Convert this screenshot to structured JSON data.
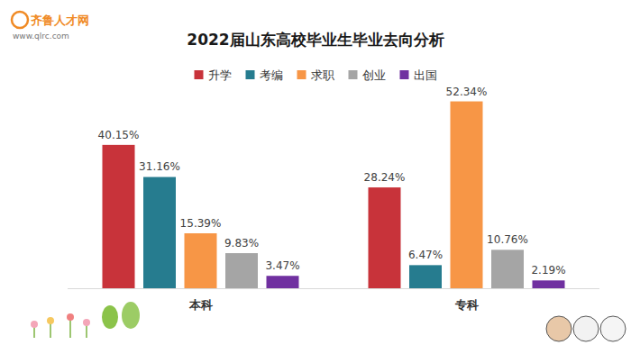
{
  "chart_data": {
    "type": "bar",
    "title": "2022届山东高校毕业生毕业去向分析",
    "annotations": [
      "齐鲁人才网",
      "www.qlrc.com"
    ],
    "categories": [
      "本科",
      "专科"
    ],
    "series": [
      {
        "name": "升学",
        "color": "#c8333a",
        "values": [
          40.15,
          28.24
        ],
        "value_labels": [
          "40.15%",
          "28.24%"
        ]
      },
      {
        "name": "考编",
        "color": "#267c8f",
        "values": [
          31.16,
          6.47
        ],
        "value_labels": [
          "31.16%",
          "6.47%"
        ]
      },
      {
        "name": "求职",
        "color": "#f79646",
        "values": [
          15.39,
          52.34
        ],
        "value_labels": [
          "15.39%",
          "52.34%"
        ]
      },
      {
        "name": "创业",
        "color": "#a5a5a5",
        "values": [
          9.83,
          10.76
        ],
        "value_labels": [
          "9.83%",
          "10.76%"
        ]
      },
      {
        "name": "出国",
        "color": "#7030a0",
        "values": [
          3.47,
          2.19
        ],
        "value_labels": [
          "3.47%",
          "2.19%"
        ]
      }
    ],
    "ylim": [
      0,
      55
    ],
    "grid": false,
    "legend": "top",
    "data_labels": true,
    "tick_labels": "x"
  }
}
